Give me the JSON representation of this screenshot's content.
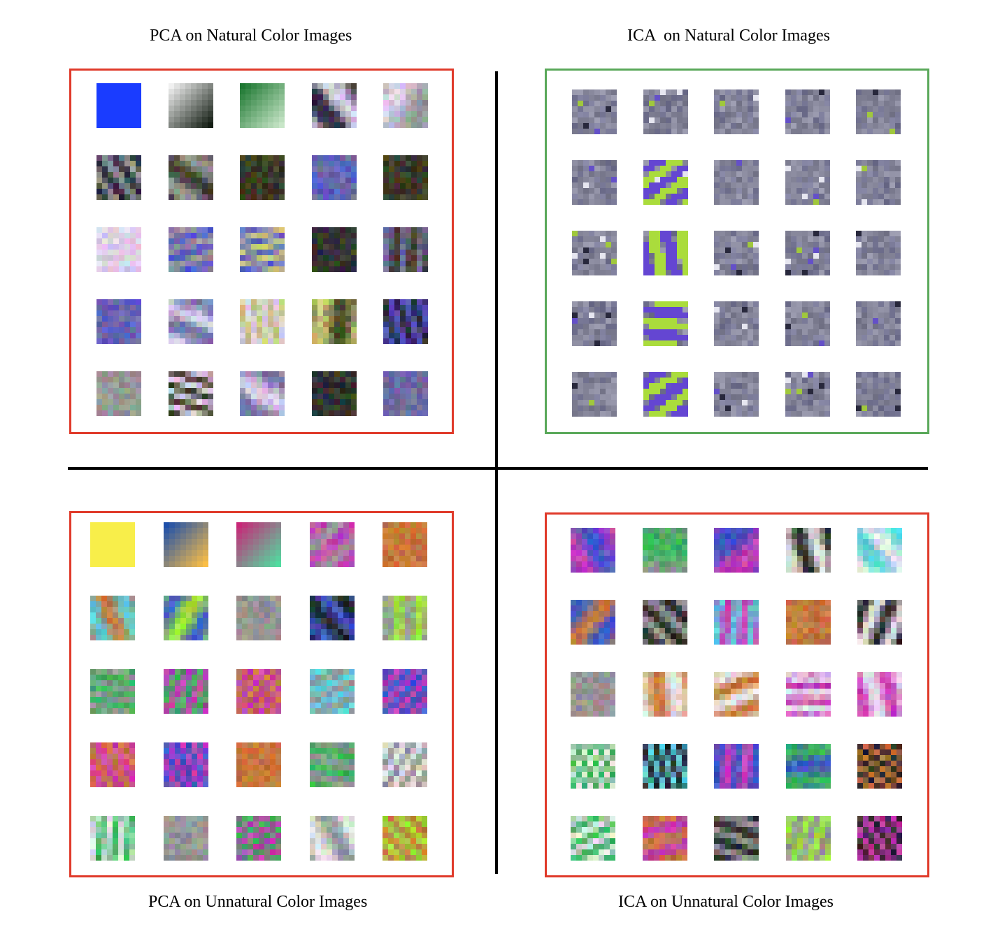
{
  "panels": {
    "pca_natural": {
      "title": "PCA on Natural Color Images",
      "frame_color": "#e03a2a",
      "palette": "natural"
    },
    "ica_natural": {
      "title": "ICA  on Natural Color Images",
      "frame_color": "#5aa85a",
      "palette": "ica_natural"
    },
    "pca_unnatural": {
      "title": "PCA on Unnatural Color Images",
      "frame_color": "#e03a2a",
      "palette": "unnatural"
    },
    "ica_unnatural": {
      "title": "ICA on Unnatural Color Images",
      "frame_color": "#e03a2a",
      "palette": "unnatural"
    }
  },
  "grid": {
    "rows": 5,
    "cols": 5,
    "patch_pixels": 8
  },
  "colors": {
    "pca_nat_first": "#1a3cff",
    "pca_unnat_first": "#f8ee4a",
    "divider": "#000000"
  }
}
